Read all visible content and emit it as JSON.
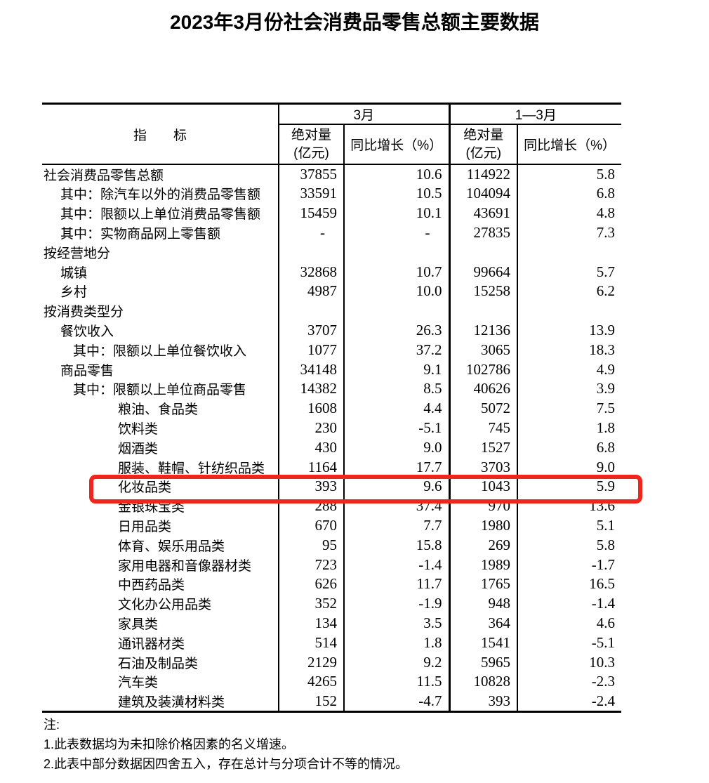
{
  "title": "2023年3月份社会消费品零售总额主要数据",
  "highlight_color": "#ee261c",
  "table": {
    "col_indicator": "指　　标",
    "group_march": "3月",
    "group_q1": "1—3月",
    "sub_abs_line1": "绝对量",
    "sub_abs_line2": "(亿元)",
    "sub_yoy": "同比增长（%）",
    "rows": [
      {
        "label": "社会消费品零售总额",
        "indent": 0,
        "m_abs": "37855",
        "m_yoy": "10.6",
        "q_abs": "114922",
        "q_yoy": "5.8",
        "highlight": false
      },
      {
        "label": "其中：除汽车以外的消费品零售额",
        "indent": 1,
        "m_abs": "33591",
        "m_yoy": "10.5",
        "q_abs": "104094",
        "q_yoy": "6.8",
        "highlight": false
      },
      {
        "label": "其中：限额以上单位消费品零售额",
        "indent": 1,
        "m_abs": "15459",
        "m_yoy": "10.1",
        "q_abs": "43691",
        "q_yoy": "4.8",
        "highlight": false
      },
      {
        "label": "其中：实物商品网上零售额",
        "indent": 1,
        "m_abs": "-",
        "m_yoy": "-",
        "q_abs": "27835",
        "q_yoy": "7.3",
        "highlight": false
      },
      {
        "label": "按经营地分",
        "indent": 0,
        "m_abs": "",
        "m_yoy": "",
        "q_abs": "",
        "q_yoy": "",
        "highlight": false
      },
      {
        "label": "城镇",
        "indent": 1,
        "m_abs": "32868",
        "m_yoy": "10.7",
        "q_abs": "99664",
        "q_yoy": "5.7",
        "highlight": false
      },
      {
        "label": "乡村",
        "indent": 1,
        "m_abs": "4987",
        "m_yoy": "10.0",
        "q_abs": "15258",
        "q_yoy": "6.2",
        "highlight": false
      },
      {
        "label": "按消费类型分",
        "indent": 0,
        "m_abs": "",
        "m_yoy": "",
        "q_abs": "",
        "q_yoy": "",
        "highlight": false
      },
      {
        "label": "餐饮收入",
        "indent": 1,
        "m_abs": "3707",
        "m_yoy": "26.3",
        "q_abs": "12136",
        "q_yoy": "13.9",
        "highlight": false
      },
      {
        "label": "其中：限额以上单位餐饮收入",
        "indent": 2,
        "m_abs": "1077",
        "m_yoy": "37.2",
        "q_abs": "3065",
        "q_yoy": "18.3",
        "highlight": false
      },
      {
        "label": "商品零售",
        "indent": 1,
        "m_abs": "34148",
        "m_yoy": "9.1",
        "q_abs": "102786",
        "q_yoy": "4.9",
        "highlight": false
      },
      {
        "label": "其中：限额以上单位商品零售",
        "indent": 2,
        "m_abs": "14382",
        "m_yoy": "8.5",
        "q_abs": "40626",
        "q_yoy": "3.9",
        "highlight": false
      },
      {
        "label": "粮油、食品类",
        "indent": 3,
        "m_abs": "1608",
        "m_yoy": "4.4",
        "q_abs": "5072",
        "q_yoy": "7.5",
        "highlight": false
      },
      {
        "label": "饮料类",
        "indent": 3,
        "m_abs": "230",
        "m_yoy": "-5.1",
        "q_abs": "745",
        "q_yoy": "1.8",
        "highlight": false
      },
      {
        "label": "烟酒类",
        "indent": 3,
        "m_abs": "430",
        "m_yoy": "9.0",
        "q_abs": "1527",
        "q_yoy": "6.8",
        "highlight": false
      },
      {
        "label": "服装、鞋帽、针纺织品类",
        "indent": 3,
        "m_abs": "1164",
        "m_yoy": "17.7",
        "q_abs": "3703",
        "q_yoy": "9.0",
        "highlight": false
      },
      {
        "label": "化妆品类",
        "indent": 3,
        "m_abs": "393",
        "m_yoy": "9.6",
        "q_abs": "1043",
        "q_yoy": "5.9",
        "highlight": true
      },
      {
        "label": "金银珠宝类",
        "indent": 3,
        "m_abs": "288",
        "m_yoy": "37.4",
        "q_abs": "970",
        "q_yoy": "13.6",
        "highlight": false
      },
      {
        "label": "日用品类",
        "indent": 3,
        "m_abs": "670",
        "m_yoy": "7.7",
        "q_abs": "1980",
        "q_yoy": "5.1",
        "highlight": false
      },
      {
        "label": "体育、娱乐用品类",
        "indent": 3,
        "m_abs": "95",
        "m_yoy": "15.8",
        "q_abs": "269",
        "q_yoy": "5.8",
        "highlight": false
      },
      {
        "label": "家用电器和音像器材类",
        "indent": 3,
        "m_abs": "723",
        "m_yoy": "-1.4",
        "q_abs": "1989",
        "q_yoy": "-1.7",
        "highlight": false
      },
      {
        "label": "中西药品类",
        "indent": 3,
        "m_abs": "626",
        "m_yoy": "11.7",
        "q_abs": "1765",
        "q_yoy": "16.5",
        "highlight": false
      },
      {
        "label": "文化办公用品类",
        "indent": 3,
        "m_abs": "352",
        "m_yoy": "-1.9",
        "q_abs": "948",
        "q_yoy": "-1.4",
        "highlight": false
      },
      {
        "label": "家具类",
        "indent": 3,
        "m_abs": "134",
        "m_yoy": "3.5",
        "q_abs": "364",
        "q_yoy": "4.6",
        "highlight": false
      },
      {
        "label": "通讯器材类",
        "indent": 3,
        "m_abs": "514",
        "m_yoy": "1.8",
        "q_abs": "1541",
        "q_yoy": "-5.1",
        "highlight": false
      },
      {
        "label": "石油及制品类",
        "indent": 3,
        "m_abs": "2129",
        "m_yoy": "9.2",
        "q_abs": "5965",
        "q_yoy": "10.3",
        "highlight": false
      },
      {
        "label": "汽车类",
        "indent": 3,
        "m_abs": "4265",
        "m_yoy": "11.5",
        "q_abs": "10828",
        "q_yoy": "-2.3",
        "highlight": false
      },
      {
        "label": "建筑及装潢材料类",
        "indent": 3,
        "m_abs": "152",
        "m_yoy": "-4.7",
        "q_abs": "393",
        "q_yoy": "-2.4",
        "highlight": false
      }
    ]
  },
  "notes": {
    "heading": "注:",
    "items": [
      "1.此表数据均为未扣除价格因素的名义增速。",
      "2.此表中部分数据因四舍五入，存在总计与分项合计不等的情况。"
    ]
  }
}
